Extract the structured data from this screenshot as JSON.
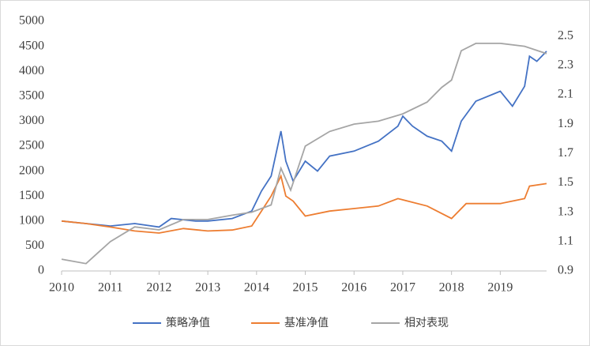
{
  "chart_data": {
    "type": "line",
    "xlim": [
      2010,
      2019.95
    ],
    "xticks": [
      2010,
      2011,
      2012,
      2013,
      2014,
      2015,
      2016,
      2017,
      2018,
      2019
    ],
    "ylim": [
      0,
      5000
    ],
    "yticks": [
      0,
      500,
      1000,
      1500,
      2000,
      2500,
      3000,
      3500,
      4000,
      4500,
      5000
    ],
    "y2lim": [
      0.9,
      2.6
    ],
    "y2ticks": [
      0.9,
      1.1,
      1.3,
      1.5,
      1.7,
      1.9,
      2.1,
      2.3,
      2.5
    ],
    "legend": "bottom",
    "series": [
      {
        "name": "策略净值",
        "color": "#4472c4",
        "x": [
          2010,
          2010.5,
          2011,
          2011.5,
          2012,
          2012.25,
          2012.75,
          2013,
          2013.5,
          2013.9,
          2014.1,
          2014.3,
          2014.5,
          2014.6,
          2014.75,
          2015,
          2015.25,
          2015.5,
          2016,
          2016.5,
          2016.9,
          2017,
          2017.2,
          2017.5,
          2017.8,
          2018,
          2018.2,
          2018.5,
          2019,
          2019.25,
          2019.5,
          2019.6,
          2019.75,
          2019.95
        ],
        "values": [
          1000,
          950,
          900,
          950,
          880,
          1050,
          1000,
          1000,
          1050,
          1200,
          1600,
          1900,
          2800,
          2200,
          1800,
          2200,
          2000,
          2300,
          2400,
          2600,
          2900,
          3100,
          2900,
          2700,
          2600,
          2400,
          3000,
          3400,
          3600,
          3300,
          3700,
          4300,
          4200,
          4400
        ]
      },
      {
        "name": "基准净值",
        "color": "#ed7d31",
        "x": [
          2010,
          2010.5,
          2011,
          2011.5,
          2012,
          2012.5,
          2013,
          2013.5,
          2013.9,
          2014.1,
          2014.3,
          2014.5,
          2014.6,
          2014.75,
          2015,
          2015.5,
          2016,
          2016.5,
          2016.9,
          2017.5,
          2018,
          2018.3,
          2019,
          2019.5,
          2019.6,
          2019.95
        ],
        "values": [
          1000,
          950,
          880,
          800,
          760,
          850,
          800,
          820,
          900,
          1200,
          1500,
          1900,
          1500,
          1400,
          1100,
          1200,
          1250,
          1300,
          1450,
          1300,
          1050,
          1350,
          1350,
          1450,
          1700,
          1750
        ]
      },
      {
        "name": "相对表现",
        "color": "#a5a5a5",
        "axis": "y2",
        "x": [
          2010,
          2010.5,
          2011,
          2011.5,
          2012,
          2012.5,
          2013,
          2013.5,
          2013.9,
          2014.3,
          2014.5,
          2014.7,
          2015,
          2015.5,
          2016,
          2016.5,
          2017,
          2017.5,
          2017.8,
          2018,
          2018.2,
          2018.5,
          2019,
          2019.5,
          2019.95
        ],
        "values": [
          0.98,
          0.95,
          1.1,
          1.2,
          1.18,
          1.25,
          1.25,
          1.28,
          1.3,
          1.35,
          1.6,
          1.45,
          1.75,
          1.85,
          1.9,
          1.92,
          1.97,
          2.05,
          2.15,
          2.2,
          2.4,
          2.45,
          2.45,
          2.43,
          2.38
        ]
      }
    ]
  }
}
